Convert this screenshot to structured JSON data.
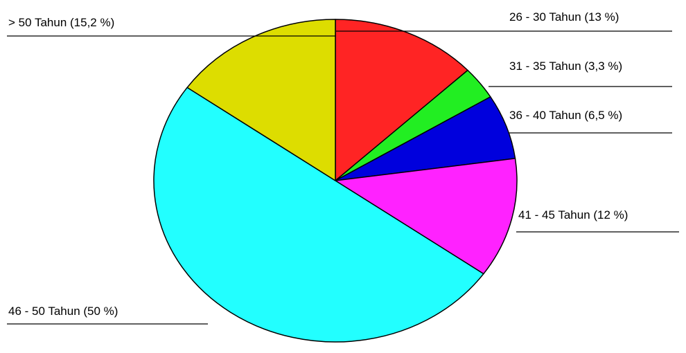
{
  "chart_data": {
    "type": "pie",
    "categories": [
      "26 - 30 Tahun (13 %)",
      "31 - 35 Tahun (3,3 %)",
      "36 - 40 Tahun (6,5 %)",
      "41 - 45 Tahun (12 %)",
      "46 - 50 Tahun (50 %)",
      "> 50 Tahun (15,2 %)"
    ],
    "values": [
      13,
      3.3,
      6.5,
      12,
      50,
      15.2
    ],
    "colors": [
      "#ff2424",
      "#22ee22",
      "#0000dd",
      "#ff22ff",
      "#22ffff",
      "#dddd00"
    ]
  }
}
